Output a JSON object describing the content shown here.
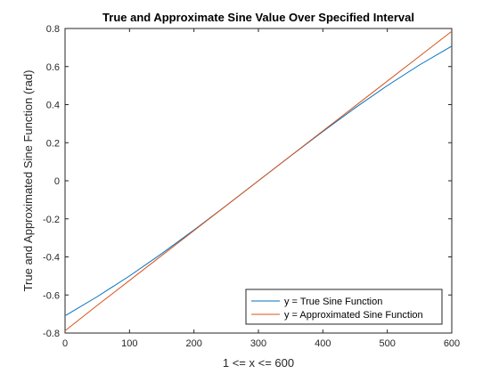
{
  "chart_data": {
    "type": "line",
    "title": "True and Approximate Sine Value Over Specified Interval",
    "xlabel": "1 <= x <= 600",
    "ylabel": "True and Approximated Sine Function (rad)",
    "xlim": [
      0,
      600
    ],
    "ylim": [
      -0.8,
      0.8
    ],
    "xticks": [
      "0",
      "100",
      "200",
      "300",
      "400",
      "500",
      "600"
    ],
    "yticks": [
      "-0.8",
      "-0.6",
      "-0.4",
      "-0.2",
      "0",
      "0.2",
      "0.4",
      "0.6",
      "0.8"
    ],
    "grid": false,
    "legend_position": "bottom-right",
    "series": [
      {
        "name": "y = True Sine Function",
        "color": "#0072BD",
        "x": [
          1,
          50,
          100,
          150,
          200,
          250,
          300,
          350,
          400,
          450,
          500,
          550,
          600
        ],
        "y": [
          -0.7071,
          -0.6088,
          -0.5,
          -0.3827,
          -0.2588,
          -0.1305,
          0.0,
          0.1305,
          0.2588,
          0.3827,
          0.5,
          0.6088,
          0.7071
        ]
      },
      {
        "name": "y = Approximated Sine Function",
        "color": "#D95319",
        "x": [
          1,
          50,
          100,
          150,
          200,
          250,
          300,
          350,
          400,
          450,
          500,
          550,
          600
        ],
        "y": [
          -0.7854,
          -0.6545,
          -0.5236,
          -0.3927,
          -0.2618,
          -0.1309,
          0.0,
          0.1309,
          0.2618,
          0.3927,
          0.5236,
          0.6545,
          0.7854
        ]
      }
    ]
  }
}
